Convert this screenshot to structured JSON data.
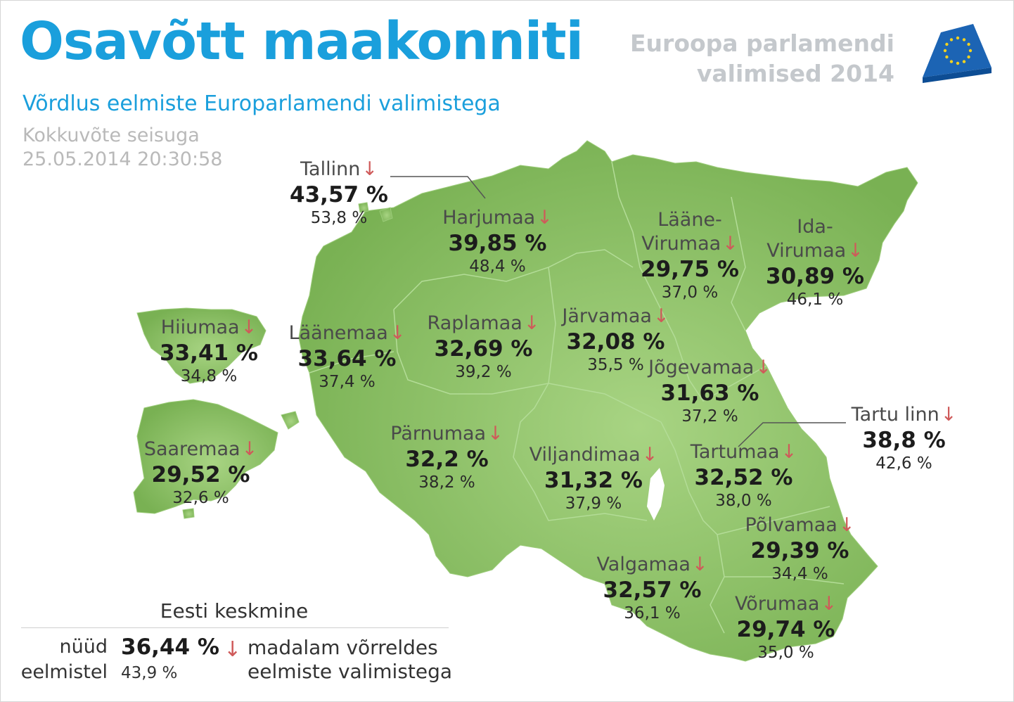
{
  "header": {
    "title": "Osavõtt maakonniti",
    "subtitle": "Võrdlus eelmiste Europarlamendi valimistega",
    "stamp_line1": "Kokkuvõte seisuga",
    "stamp_line2": "25.05.2014 20:30:58",
    "eu_line1": "Euroopa parlamendi",
    "eu_line2": "valimised 2014"
  },
  "colors": {
    "accent": "#1a9fdc",
    "land": "#8cc265",
    "land_dark": "#7db45a",
    "border": "#a5d288",
    "down_arrow": "#cf5a5a",
    "eu_blue": "#1c64b4",
    "eu_star": "#f4d21e"
  },
  "icons": {
    "down_arrow": "down-arrow-icon",
    "ballot": "eu-ballot-box-icon"
  },
  "regions": [
    {
      "id": "tallinn",
      "name": "Tallinn",
      "now": "43,57 %",
      "prev": "53,8 %",
      "trend": "down"
    },
    {
      "id": "harjumaa",
      "name": "Harjumaa",
      "now": "39,85 %",
      "prev": "48,4 %",
      "trend": "down"
    },
    {
      "id": "laane-virumaa",
      "name": "Lääne-\nVirumaa",
      "now": "29,75 %",
      "prev": "37,0 %",
      "trend": "down"
    },
    {
      "id": "ida-virumaa",
      "name": "Ida-\nVirumaa",
      "now": "30,89 %",
      "prev": "46,1 %",
      "trend": "down"
    },
    {
      "id": "hiiumaa",
      "name": "Hiiumaa",
      "now": "33,41 %",
      "prev": "34,8 %",
      "trend": "down"
    },
    {
      "id": "laanemaa",
      "name": "Läänemaa",
      "now": "33,64 %",
      "prev": "37,4 %",
      "trend": "down"
    },
    {
      "id": "raplamaa",
      "name": "Raplamaa",
      "now": "32,69 %",
      "prev": "39,2 %",
      "trend": "down"
    },
    {
      "id": "jarvamaa",
      "name": "Järvamaa",
      "now": "32,08 %",
      "prev": "35,5 %",
      "trend": "down"
    },
    {
      "id": "jogevamaa",
      "name": "Jõgevamaa",
      "now": "31,63 %",
      "prev": "37,2 %",
      "trend": "down"
    },
    {
      "id": "saaremaa",
      "name": "Saaremaa",
      "now": "29,52 %",
      "prev": "32,6 %",
      "trend": "down"
    },
    {
      "id": "parnumaa",
      "name": "Pärnumaa",
      "now": "32,2 %",
      "prev": "38,2 %",
      "trend": "down"
    },
    {
      "id": "viljandimaa",
      "name": "Viljandimaa",
      "now": "31,32 %",
      "prev": "37,9 %",
      "trend": "down"
    },
    {
      "id": "tartumaa",
      "name": "Tartumaa",
      "now": "32,52 %",
      "prev": "38,0 %",
      "trend": "down"
    },
    {
      "id": "tartu-linn",
      "name": "Tartu linn",
      "now": "38,8 %",
      "prev": "42,6 %",
      "trend": "down"
    },
    {
      "id": "polvamaa",
      "name": "Põlvamaa",
      "now": "29,39 %",
      "prev": "34,4 %",
      "trend": "down"
    },
    {
      "id": "valgamaa",
      "name": "Valgamaa",
      "now": "32,57 %",
      "prev": "36,1 %",
      "trend": "down"
    },
    {
      "id": "vorumaa",
      "name": "Võrumaa",
      "now": "29,74 %",
      "prev": "35,0 %",
      "trend": "down"
    }
  ],
  "average": {
    "heading": "Eesti keskmine",
    "now_label": "nüüd",
    "now_value": "36,44 %",
    "prev_label": "eelmistel",
    "prev_value": "43,9 %"
  },
  "legend": {
    "arrow": "↓",
    "line1": "madalam võrreldes",
    "line2": "eelmiste valimistega"
  }
}
